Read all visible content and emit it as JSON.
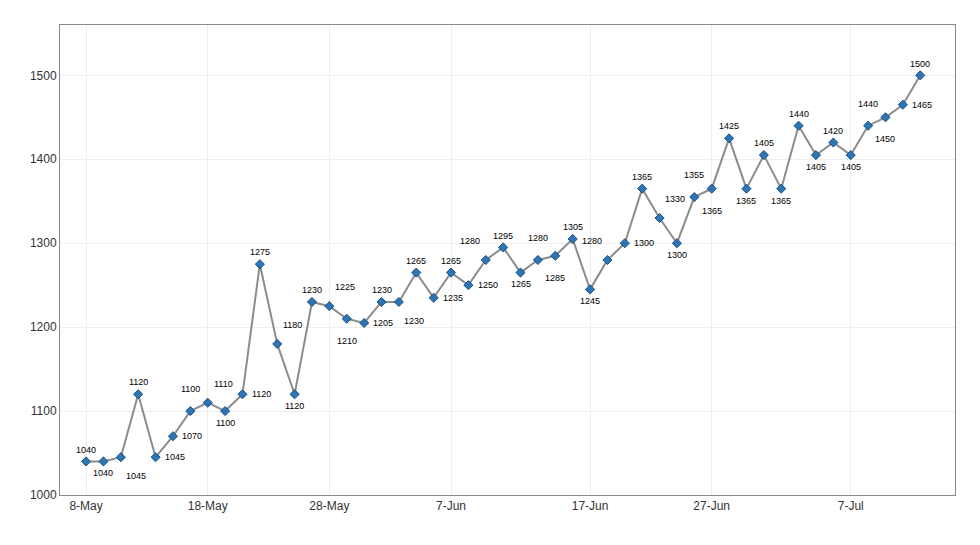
{
  "chart_data": {
    "type": "line",
    "x": [
      0,
      1,
      2,
      3,
      4,
      5,
      6,
      7,
      8,
      9,
      10,
      11,
      12,
      13,
      14,
      15,
      16,
      17,
      18,
      19,
      20,
      21,
      22,
      23,
      24,
      25,
      26,
      27,
      28,
      29,
      30,
      31,
      32,
      33,
      34,
      35,
      36,
      37,
      38,
      39,
      40,
      41,
      42,
      43,
      44,
      45,
      46,
      47,
      48
    ],
    "values": [
      1040,
      1040,
      1045,
      1120,
      1045,
      1070,
      1100,
      1110,
      1100,
      1120,
      1275,
      1180,
      1120,
      1230,
      1225,
      1210,
      1205,
      1230,
      1230,
      1265,
      1235,
      1265,
      1250,
      1280,
      1295,
      1265,
      1280,
      1285,
      1305,
      1245,
      1280,
      1300,
      1365,
      1330,
      1300,
      1355,
      1365,
      1425,
      1365,
      1405,
      1365,
      1440,
      1405,
      1420,
      1405,
      1440,
      1450,
      1465,
      1500
    ],
    "xlim": [
      -1.5,
      50
    ],
    "xticks": [
      {
        "value": 0,
        "label": "8-May"
      },
      {
        "value": 7,
        "label": "18-May"
      },
      {
        "value": 14,
        "label": "28-May"
      },
      {
        "value": 21,
        "label": "7-Jun"
      },
      {
        "value": 29,
        "label": "17-Jun"
      },
      {
        "value": 36,
        "label": "27-Jun"
      },
      {
        "value": 44,
        "label": "7-Jul"
      }
    ],
    "ylim": [
      1000,
      1560
    ],
    "yticks": [
      1000,
      1100,
      1200,
      1300,
      1400,
      1500
    ],
    "grid": true,
    "data_labels": true,
    "color": "#2e75b6",
    "marker": "diamond",
    "line_style": "solid"
  }
}
